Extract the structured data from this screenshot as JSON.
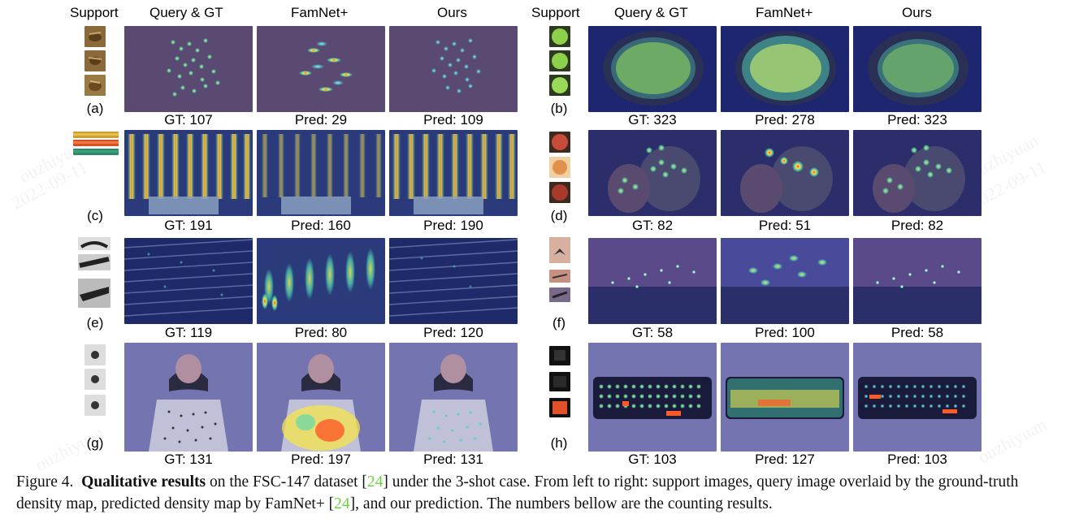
{
  "headers": {
    "left": {
      "support": "Support",
      "query": "Query & GT",
      "famnet": "FamNet+",
      "ours": "Ours"
    },
    "right": {
      "support": "Support",
      "query": "Query & GT",
      "famnet": "FamNet+",
      "ours": "Ours"
    }
  },
  "rows": [
    {
      "label": "(a)",
      "gt": "GT: 107",
      "famnet": "Pred: 29",
      "ours": "Pred: 109"
    },
    {
      "label": "(b)",
      "gt": "GT: 323",
      "famnet": "Pred: 278",
      "ours": "Pred: 323"
    },
    {
      "label": "(c)",
      "gt": "GT: 191",
      "famnet": "Pred: 160",
      "ours": "Pred: 190"
    },
    {
      "label": "(d)",
      "gt": "GT: 82",
      "famnet": "Pred: 51",
      "ours": "Pred: 82"
    },
    {
      "label": "(e)",
      "gt": "GT: 119",
      "famnet": "Pred: 80",
      "ours": "Pred: 120"
    },
    {
      "label": "(f)",
      "gt": "GT: 58",
      "famnet": "Pred: 100",
      "ours": "Pred: 58"
    },
    {
      "label": "(g)",
      "gt": "GT: 131",
      "famnet": "Pred: 197",
      "ours": "Pred: 131"
    },
    {
      "label": "(h)",
      "gt": "GT: 103",
      "famnet": "Pred: 127",
      "ours": "Pred: 103"
    }
  ],
  "caption": {
    "figure_label": "Figure 4.",
    "bold_part": "Qualitative results",
    "part1": "on the FSC-147 dataset [",
    "ref1": "24",
    "part2": "] under the 3-shot case. From left to right: support images, query image overlaid by the ground-truth density map, predicted density map by FamNet+ [",
    "ref2": "24",
    "part3": "], and our prediction. The numbers bellow are the counting results."
  },
  "colors": {
    "overlay_blue": "#3a3f9a",
    "density_hot": "#ff3b1f",
    "density_warm": "#f4e64a",
    "density_mid": "#4fd7b5",
    "citation_green": "#6bd43a"
  },
  "watermark": [
    "ouzhiyuan",
    "2022-09-11"
  ]
}
